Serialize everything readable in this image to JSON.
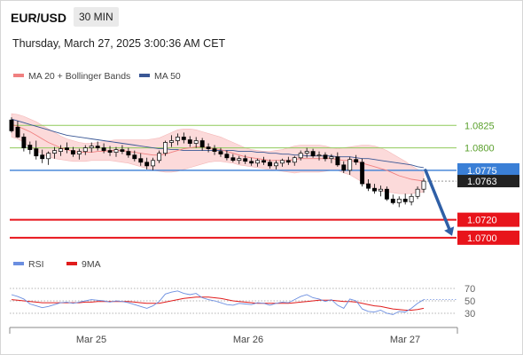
{
  "header": {
    "symbol": "EUR/USD",
    "timeframe": "30 MIN",
    "datetime": "Thursday, March 27, 2025 3:00:36 AM CET"
  },
  "colors": {
    "candle": "#000000",
    "ma20": "#f08080",
    "bollinger_fill": "#fcdada",
    "ma50": "#3a5795",
    "support_red": "#e8141b",
    "green_level": "#8fca5a",
    "blue_level": "#3a7fd6",
    "current_price": "#222222",
    "arrow": "#2f5fa6",
    "rsi": "#6b8ee0",
    "rsi_ma": "#e01c1c"
  },
  "chart_data": [
    {
      "type": "line",
      "title": "",
      "candles": [
        [
          1.0831,
          1.0834,
          1.0817,
          1.0819
        ],
        [
          1.0823,
          1.083,
          1.0811,
          1.0812
        ],
        [
          1.0812,
          1.0816,
          1.0796,
          1.08
        ],
        [
          1.0803,
          1.0807,
          1.0793,
          1.0798
        ],
        [
          1.0799,
          1.0808,
          1.0787,
          1.0791
        ],
        [
          1.0792,
          1.0798,
          1.0783,
          1.0788
        ],
        [
          1.0788,
          1.0796,
          1.0781,
          1.0794
        ],
        [
          1.0794,
          1.0801,
          1.0788,
          1.0797
        ],
        [
          1.0796,
          1.0803,
          1.0791,
          1.0799
        ],
        [
          1.08,
          1.0806,
          1.0794,
          1.0798
        ],
        [
          1.0797,
          1.0801,
          1.079,
          1.0793
        ],
        [
          1.0793,
          1.0799,
          1.0787,
          1.0796
        ],
        [
          1.0796,
          1.0803,
          1.0792,
          1.08
        ],
        [
          1.08,
          1.0806,
          1.0795,
          1.0802
        ],
        [
          1.0802,
          1.0807,
          1.0797,
          1.08
        ],
        [
          1.08,
          1.0805,
          1.0794,
          1.0797
        ],
        [
          1.0797,
          1.0802,
          1.0791,
          1.0795
        ],
        [
          1.0795,
          1.0801,
          1.079,
          1.0798
        ],
        [
          1.0798,
          1.0803,
          1.0793,
          1.0796
        ],
        [
          1.0796,
          1.08,
          1.0789,
          1.0792
        ],
        [
          1.0792,
          1.0797,
          1.0785,
          1.0788
        ],
        [
          1.0788,
          1.0794,
          1.078,
          1.0784
        ],
        [
          1.0784,
          1.0789,
          1.0776,
          1.078
        ],
        [
          1.078,
          1.0789,
          1.0775,
          1.0786
        ],
        [
          1.0786,
          1.0797,
          1.0783,
          1.0794
        ],
        [
          1.0794,
          1.0808,
          1.0791,
          1.0806
        ],
        [
          1.0806,
          1.0814,
          1.0801,
          1.0808
        ],
        [
          1.0808,
          1.0816,
          1.0803,
          1.0812
        ],
        [
          1.0812,
          1.0817,
          1.0805,
          1.0809
        ],
        [
          1.0809,
          1.0813,
          1.0801,
          1.0805
        ],
        [
          1.0805,
          1.0812,
          1.08,
          1.0808
        ],
        [
          1.0808,
          1.0811,
          1.0797,
          1.0801
        ],
        [
          1.0801,
          1.0805,
          1.0795,
          1.0799
        ],
        [
          1.0799,
          1.0803,
          1.0792,
          1.0796
        ],
        [
          1.0796,
          1.08,
          1.079,
          1.0793
        ],
        [
          1.0793,
          1.0797,
          1.0786,
          1.0789
        ],
        [
          1.0789,
          1.0793,
          1.0784,
          1.0786
        ],
        [
          1.0786,
          1.0791,
          1.0782,
          1.0788
        ],
        [
          1.0788,
          1.0792,
          1.0782,
          1.0785
        ],
        [
          1.0785,
          1.0789,
          1.078,
          1.0783
        ],
        [
          1.0783,
          1.0788,
          1.0779,
          1.0786
        ],
        [
          1.0786,
          1.079,
          1.0781,
          1.0784
        ],
        [
          1.0784,
          1.0787,
          1.0777,
          1.078
        ],
        [
          1.078,
          1.0786,
          1.0776,
          1.0783
        ],
        [
          1.0783,
          1.0788,
          1.0779,
          1.0786
        ],
        [
          1.0786,
          1.079,
          1.0781,
          1.0784
        ],
        [
          1.0784,
          1.0791,
          1.078,
          1.0789
        ],
        [
          1.0789,
          1.0797,
          1.0786,
          1.0794
        ],
        [
          1.0794,
          1.08,
          1.0789,
          1.0796
        ],
        [
          1.0796,
          1.0799,
          1.0789,
          1.0791
        ],
        [
          1.0791,
          1.0796,
          1.0786,
          1.0792
        ],
        [
          1.0792,
          1.0795,
          1.0785,
          1.0788
        ],
        [
          1.0788,
          1.0793,
          1.0783,
          1.079
        ],
        [
          1.079,
          1.0795,
          1.0779,
          1.0781
        ],
        [
          1.0781,
          1.0785,
          1.0772,
          1.0775
        ],
        [
          1.0775,
          1.079,
          1.077,
          1.0787
        ],
        [
          1.0787,
          1.0792,
          1.0781,
          1.0784
        ],
        [
          1.0784,
          1.0788,
          1.0757,
          1.076
        ],
        [
          1.076,
          1.0765,
          1.0752,
          1.0755
        ],
        [
          1.0755,
          1.076,
          1.0749,
          1.0752
        ],
        [
          1.0752,
          1.0758,
          1.0746,
          1.0754
        ],
        [
          1.0754,
          1.0757,
          1.0741,
          1.0743
        ],
        [
          1.0743,
          1.0748,
          1.0737,
          1.0739
        ],
        [
          1.0739,
          1.0746,
          1.0734,
          1.0743
        ],
        [
          1.0743,
          1.0749,
          1.0737,
          1.074
        ],
        [
          1.074,
          1.0749,
          1.0736,
          1.0746
        ],
        [
          1.0746,
          1.0757,
          1.0743,
          1.0754
        ],
        [
          1.0754,
          1.0766,
          1.075,
          1.0763
        ]
      ],
      "ma20": [
        1.0826,
        1.0824,
        1.0821,
        1.0818,
        1.0814,
        1.081,
        1.0806,
        1.0803,
        1.08,
        1.0798,
        1.0796,
        1.0795,
        1.0795,
        1.0795,
        1.0796,
        1.0796,
        1.0797,
        1.0797,
        1.0797,
        1.0796,
        1.0795,
        1.0794,
        1.0793,
        1.0792,
        1.0792,
        1.0793,
        1.0795,
        1.0797,
        1.0799,
        1.08,
        1.0801,
        1.0801,
        1.08,
        1.0799,
        1.0798,
        1.0796,
        1.0794,
        1.0792,
        1.079,
        1.0789,
        1.0788,
        1.0787,
        1.0786,
        1.0786,
        1.0786,
        1.0786,
        1.0787,
        1.0788,
        1.0788,
        1.0788,
        1.0788,
        1.0788,
        1.0788,
        1.0787,
        1.0786,
        1.0786,
        1.0785,
        1.0783,
        1.0781,
        1.0779,
        1.0777,
        1.0775,
        1.0772,
        1.0769,
        1.0767,
        1.0765,
        1.0764,
        1.0763
      ],
      "bollinger_upper": [
        1.0838,
        1.0837,
        1.0835,
        1.0832,
        1.0829,
        1.0825,
        1.0821,
        1.0817,
        1.0813,
        1.081,
        1.0808,
        1.0806,
        1.0805,
        1.0805,
        1.0806,
        1.0807,
        1.0808,
        1.0809,
        1.0809,
        1.0809,
        1.0809,
        1.0809,
        1.0809,
        1.081,
        1.0811,
        1.0814,
        1.0817,
        1.082,
        1.0821,
        1.0821,
        1.082,
        1.0818,
        1.0816,
        1.0814,
        1.0812,
        1.0809,
        1.0806,
        1.0803,
        1.08,
        1.0798,
        1.0797,
        1.0796,
        1.0796,
        1.0797,
        1.0798,
        1.08,
        1.0802,
        1.0803,
        1.0803,
        1.0803,
        1.0803,
        1.0802,
        1.08,
        1.0799,
        1.08,
        1.0801,
        1.0802,
        1.0803,
        1.0803,
        1.0802,
        1.08,
        1.0797,
        1.0793,
        1.0789,
        1.0785,
        1.078,
        1.0776,
        1.0773
      ],
      "bollinger_lower": [
        1.0812,
        1.081,
        1.0806,
        1.0801,
        1.0797,
        1.0793,
        1.079,
        1.0788,
        1.0787,
        1.0786,
        1.0785,
        1.0785,
        1.0785,
        1.0786,
        1.0786,
        1.0786,
        1.0786,
        1.0785,
        1.0784,
        1.0783,
        1.0781,
        1.0779,
        1.0777,
        1.0775,
        1.0774,
        1.0773,
        1.0773,
        1.0774,
        1.0776,
        1.0778,
        1.078,
        1.0782,
        1.0784,
        1.0785,
        1.0785,
        1.0784,
        1.0783,
        1.0781,
        1.078,
        1.0779,
        1.0778,
        1.0777,
        1.0776,
        1.0775,
        1.0774,
        1.0773,
        1.0772,
        1.0773,
        1.0773,
        1.0773,
        1.0773,
        1.0774,
        1.0775,
        1.0775,
        1.0772,
        1.077,
        1.0766,
        1.0762,
        1.0758,
        1.0755,
        1.0752,
        1.0751,
        1.075,
        1.0749,
        1.0749,
        1.0749,
        1.075,
        1.0751
      ],
      "ma50": [
        1.0832,
        1.083,
        1.0828,
        1.0826,
        1.0824,
        1.0822,
        1.082,
        1.0818,
        1.0816,
        1.0814,
        1.0813,
        1.0812,
        1.0811,
        1.081,
        1.0809,
        1.0808,
        1.0807,
        1.0806,
        1.0805,
        1.0804,
        1.0803,
        1.0802,
        1.0801,
        1.08,
        1.0799,
        1.0799,
        1.0798,
        1.0798,
        1.0797,
        1.0797,
        1.0797,
        1.0797,
        1.0797,
        1.0797,
        1.0797,
        1.0797,
        1.0797,
        1.0796,
        1.0796,
        1.0796,
        1.0795,
        1.0795,
        1.0794,
        1.0794,
        1.0793,
        1.0793,
        1.0792,
        1.0792,
        1.0791,
        1.0791,
        1.0791,
        1.0791,
        1.0791,
        1.079,
        1.079,
        1.079,
        1.0789,
        1.0788,
        1.0788,
        1.0787,
        1.0786,
        1.0785,
        1.0784,
        1.0783,
        1.0782,
        1.0781,
        1.0779,
        1.0778
      ],
      "price_levels": [
        {
          "value": 1.0825,
          "label": "1.0825",
          "kind": "resistance"
        },
        {
          "value": 1.08,
          "label": "1.0800",
          "kind": "resistance"
        },
        {
          "value": 1.0775,
          "label": "1.0775",
          "kind": "pivot"
        },
        {
          "value": 1.072,
          "label": "1.0720",
          "kind": "support"
        },
        {
          "value": 1.07,
          "label": "1.0700",
          "kind": "support"
        }
      ],
      "current_price": {
        "value": 1.0763,
        "label": "1.0763"
      },
      "forecast_arrow": {
        "from": 1.0775,
        "to": 1.07
      },
      "ylim": [
        1.0688,
        1.0846
      ],
      "x_labels": [
        "Mar 25",
        "Mar 26",
        "Mar 27"
      ],
      "legend": [
        {
          "name": "MA 20 + Bollinger Bands",
          "color": "#f08080"
        },
        {
          "name": "MA 50",
          "color": "#3a5795"
        }
      ]
    },
    {
      "type": "line",
      "title": "",
      "rsi": [
        60,
        57,
        53,
        45,
        42,
        39,
        41,
        44,
        47,
        48,
        46,
        48,
        50,
        52,
        51,
        50,
        48,
        50,
        49,
        47,
        44,
        41,
        38,
        42,
        49,
        61,
        64,
        66,
        62,
        60,
        62,
        55,
        52,
        50,
        47,
        44,
        43,
        46,
        45,
        44,
        47,
        46,
        43,
        46,
        48,
        47,
        52,
        57,
        60,
        55,
        53,
        49,
        52,
        43,
        38,
        53,
        50,
        37,
        33,
        32,
        35,
        30,
        28,
        33,
        32,
        38,
        46,
        52
      ],
      "rsi_ma": [
        52,
        51,
        50,
        49,
        48,
        47,
        47,
        47,
        47,
        47,
        47,
        47,
        48,
        48,
        49,
        49,
        49,
        49,
        49,
        49,
        48,
        47,
        46,
        46,
        46,
        48,
        50,
        52,
        54,
        55,
        56,
        56,
        56,
        55,
        54,
        52,
        50,
        49,
        48,
        47,
        46,
        46,
        46,
        46,
        46,
        46,
        47,
        48,
        49,
        50,
        51,
        51,
        51,
        50,
        49,
        49,
        48,
        46,
        44,
        42,
        41,
        39,
        37,
        36,
        35,
        35,
        36,
        38
      ],
      "y_ticks": [
        70,
        50,
        30
      ],
      "ylim": [
        20,
        80
      ],
      "legend": [
        {
          "name": "RSI",
          "color": "#6b8ee0"
        },
        {
          "name": "9MA",
          "color": "#e01c1c"
        }
      ]
    }
  ]
}
